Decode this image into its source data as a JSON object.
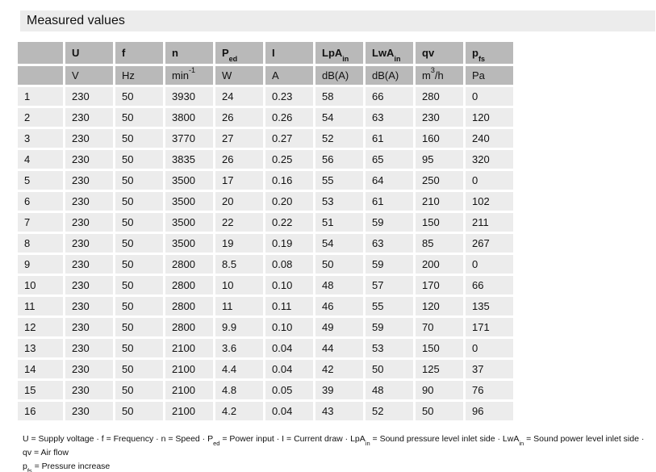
{
  "title": "Measured values",
  "colors": {
    "titlebar_bg": "#ececec",
    "header_bg": "#b9b9b9",
    "row_bg": "#ececec",
    "text": "#111111"
  },
  "table": {
    "columns": [
      {
        "main": ""
      },
      {
        "main": "U"
      },
      {
        "main": "f"
      },
      {
        "main": "n"
      },
      {
        "main": "P",
        "sub": "ed"
      },
      {
        "main": "I"
      },
      {
        "main": "LpA",
        "sub": "in"
      },
      {
        "main": "LwA",
        "sub": "in"
      },
      {
        "main": "qv"
      },
      {
        "main": "p",
        "sub": "fs"
      }
    ],
    "units": [
      {
        "pre": ""
      },
      {
        "pre": "V"
      },
      {
        "pre": "Hz"
      },
      {
        "pre": "min",
        "sup": "-1"
      },
      {
        "pre": "W"
      },
      {
        "pre": "A"
      },
      {
        "pre": "dB(A)"
      },
      {
        "pre": "dB(A)"
      },
      {
        "pre": "m",
        "sup": "3",
        "post": "/h"
      },
      {
        "pre": "Pa"
      }
    ],
    "rows": [
      {
        "n": "1",
        "values": [
          "230",
          "50",
          "3930",
          "24",
          "0.23",
          "58",
          "66",
          "280",
          "0"
        ]
      },
      {
        "n": "2",
        "values": [
          "230",
          "50",
          "3800",
          "26",
          "0.26",
          "54",
          "63",
          "230",
          "120"
        ]
      },
      {
        "n": "3",
        "values": [
          "230",
          "50",
          "3770",
          "27",
          "0.27",
          "52",
          "61",
          "160",
          "240"
        ]
      },
      {
        "n": "4",
        "values": [
          "230",
          "50",
          "3835",
          "26",
          "0.25",
          "56",
          "65",
          "95",
          "320"
        ]
      },
      {
        "n": "5",
        "values": [
          "230",
          "50",
          "3500",
          "17",
          "0.16",
          "55",
          "64",
          "250",
          "0"
        ]
      },
      {
        "n": "6",
        "values": [
          "230",
          "50",
          "3500",
          "20",
          "0.20",
          "53",
          "61",
          "210",
          "102"
        ]
      },
      {
        "n": "7",
        "values": [
          "230",
          "50",
          "3500",
          "22",
          "0.22",
          "51",
          "59",
          "150",
          "211"
        ]
      },
      {
        "n": "8",
        "values": [
          "230",
          "50",
          "3500",
          "19",
          "0.19",
          "54",
          "63",
          "85",
          "267"
        ]
      },
      {
        "n": "9",
        "values": [
          "230",
          "50",
          "2800",
          "8.5",
          "0.08",
          "50",
          "59",
          "200",
          "0"
        ]
      },
      {
        "n": "10",
        "values": [
          "230",
          "50",
          "2800",
          "10",
          "0.10",
          "48",
          "57",
          "170",
          "66"
        ]
      },
      {
        "n": "11",
        "values": [
          "230",
          "50",
          "2800",
          "11",
          "0.11",
          "46",
          "55",
          "120",
          "135"
        ]
      },
      {
        "n": "12",
        "values": [
          "230",
          "50",
          "2800",
          "9.9",
          "0.10",
          "49",
          "59",
          "70",
          "171"
        ]
      },
      {
        "n": "13",
        "values": [
          "230",
          "50",
          "2100",
          "3.6",
          "0.04",
          "44",
          "53",
          "150",
          "0"
        ]
      },
      {
        "n": "14",
        "values": [
          "230",
          "50",
          "2100",
          "4.4",
          "0.04",
          "42",
          "50",
          "125",
          "37"
        ]
      },
      {
        "n": "15",
        "values": [
          "230",
          "50",
          "2100",
          "4.8",
          "0.05",
          "39",
          "48",
          "90",
          "76"
        ]
      },
      {
        "n": "16",
        "values": [
          "230",
          "50",
          "2100",
          "4.2",
          "0.04",
          "43",
          "52",
          "50",
          "96"
        ]
      }
    ]
  },
  "legend": {
    "line1": {
      "p1": "U = Supply voltage · f = Frequency · n = Speed · P",
      "s1": "ed",
      "p2": " = Power input · I = Current draw · LpA",
      "s2": "in",
      "p3": " = Sound pressure level inlet side · LwA",
      "s3": "in",
      "p4": " = Sound power level inlet side · qv = Air flow"
    },
    "line2": {
      "p1": "p",
      "s1": "fs",
      "p2": " = Pressure increase"
    }
  }
}
